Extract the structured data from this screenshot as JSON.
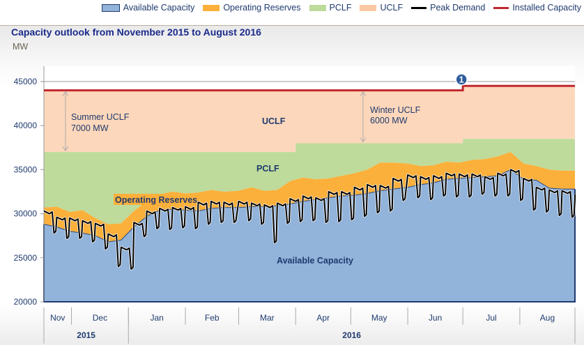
{
  "chart_data": {
    "type": "area",
    "stacked": true,
    "title": "Capacity outlook from November 2015 to August 2016",
    "ylabel": "MW",
    "ylim": [
      20000,
      45000
    ],
    "yticks": [
      20000,
      25000,
      30000,
      35000,
      40000,
      45000
    ],
    "x_range": [
      "2015-11-16",
      "2016-08-31"
    ],
    "months": [
      {
        "label": "Nov",
        "start": "2015-11-16"
      },
      {
        "label": "Dec",
        "start": "2015-12-01"
      },
      {
        "label": "Jan",
        "start": "2016-01-01"
      },
      {
        "label": "Feb",
        "start": "2016-02-01"
      },
      {
        "label": "Mar",
        "start": "2016-03-01"
      },
      {
        "label": "Apr",
        "start": "2016-04-01"
      },
      {
        "label": "May",
        "start": "2016-05-01"
      },
      {
        "label": "Jun",
        "start": "2016-06-01"
      },
      {
        "label": "Jul",
        "start": "2016-07-01"
      },
      {
        "label": "Aug",
        "start": "2016-08-01"
      }
    ],
    "years": [
      {
        "label": "2015",
        "start": "2015-11-16",
        "end": "2016-01-01"
      },
      {
        "label": "2016",
        "start": "2016-01-01",
        "end": "2016-08-31"
      }
    ],
    "legend": {
      "placement": "top-right",
      "entries": [
        {
          "name": "Available Capacity",
          "kind": "area",
          "color": "#92b3da",
          "border": "#1f3a6e"
        },
        {
          "name": "Operating Reserves",
          "kind": "area",
          "color": "#fbb03b"
        },
        {
          "name": "PCLF",
          "kind": "area",
          "color": "#bedb9c"
        },
        {
          "name": "UCLF",
          "kind": "area",
          "color": "#fcc9a4"
        },
        {
          "name": "Peak Demand",
          "kind": "line",
          "color": "#000000"
        },
        {
          "name": "Installed Capacity",
          "kind": "line",
          "color": "#c0282f"
        }
      ]
    },
    "weekly": {
      "dates": [
        "2015-11-16",
        "2015-11-23",
        "2015-11-30",
        "2015-12-07",
        "2015-12-14",
        "2015-12-21",
        "2015-12-28",
        "2016-01-04",
        "2016-01-11",
        "2016-01-18",
        "2016-01-25",
        "2016-02-01",
        "2016-02-08",
        "2016-02-15",
        "2016-02-22",
        "2016-03-01",
        "2016-03-08",
        "2016-03-15",
        "2016-03-22",
        "2016-03-29",
        "2016-04-05",
        "2016-04-12",
        "2016-04-19",
        "2016-04-26",
        "2016-05-03",
        "2016-05-10",
        "2016-05-17",
        "2016-05-24",
        "2016-06-01",
        "2016-06-08",
        "2016-06-15",
        "2016-06-22",
        "2016-06-29",
        "2016-07-06",
        "2016-07-13",
        "2016-07-20",
        "2016-07-27",
        "2016-08-03",
        "2016-08-10",
        "2016-08-17",
        "2016-08-24",
        "2016-08-31"
      ],
      "available_capacity": [
        28800,
        28500,
        28000,
        27800,
        27500,
        26800,
        27000,
        28500,
        29700,
        30400,
        30500,
        30400,
        30300,
        30600,
        30700,
        30700,
        30800,
        30800,
        30900,
        31100,
        31400,
        31600,
        31800,
        32000,
        32100,
        32300,
        32600,
        32800,
        33000,
        33300,
        33500,
        33900,
        34000,
        34100,
        34200,
        34300,
        35000,
        33900,
        33800,
        32900,
        32800,
        32800
      ],
      "operating_reserves": [
        1900,
        2300,
        2200,
        2600,
        2000,
        2000,
        1900,
        1800,
        1700,
        1800,
        2000,
        1900,
        2100,
        2100,
        1800,
        1900,
        2200,
        1800,
        1800,
        2600,
        2700,
        2300,
        2200,
        2300,
        2500,
        2700,
        3200,
        3000,
        2700,
        2100,
        2000,
        2000,
        1800,
        2000,
        2000,
        2200,
        2000,
        1800,
        1600,
        2100,
        2100,
        2100
      ],
      "peak_demand_weekday_high": [
        30300,
        29600,
        29500,
        29200,
        28900,
        27700,
        26200,
        29000,
        30300,
        30600,
        30700,
        30800,
        31300,
        31400,
        31300,
        31400,
        31200,
        31000,
        31200,
        31700,
        32000,
        31800,
        32500,
        32500,
        33000,
        33300,
        33200,
        34000,
        34400,
        34200,
        34300,
        34600,
        34500,
        34500,
        34200,
        34600,
        35000,
        34000,
        33000,
        32700,
        32600,
        32200
      ],
      "peak_demand_weekend_low": [
        27800,
        27200,
        27200,
        26800,
        26000,
        24000,
        23700,
        27400,
        28300,
        28200,
        28400,
        28300,
        28800,
        29000,
        29000,
        29200,
        28800,
        26700,
        28900,
        29100,
        29200,
        29000,
        29100,
        29300,
        29700,
        30100,
        30300,
        31500,
        31800,
        31600,
        32000,
        31900,
        31900,
        32200,
        32000,
        32000,
        31500,
        30400,
        30200,
        29800,
        29600,
        31600
      ]
    },
    "pclf_top": [
      {
        "from": "2015-11-16",
        "to": "2016-03-31",
        "value": 37000
      },
      {
        "from": "2016-04-01",
        "to": "2016-06-30",
        "value": 38000
      },
      {
        "from": "2016-07-01",
        "to": "2016-08-31",
        "value": 38500
      }
    ],
    "installed_capacity": [
      {
        "from": "2015-11-16",
        "to": "2016-06-30",
        "value": 44000
      },
      {
        "from": "2016-07-01",
        "to": "2016-08-31",
        "value": 44500
      }
    ],
    "annotations": {
      "summer_uclf": [
        "Summer UCLF",
        "7000 MW"
      ],
      "winter_uclf": [
        "Winter UCLF",
        "6000 MW"
      ],
      "uclf_label": "UCLF",
      "pclf_label": "PCLF",
      "reserves_label": "Operating Reserves",
      "available_label": "Available Capacity",
      "marker": {
        "label": "1",
        "date": "2016-07-01",
        "color": "#2e5c9c"
      }
    }
  }
}
